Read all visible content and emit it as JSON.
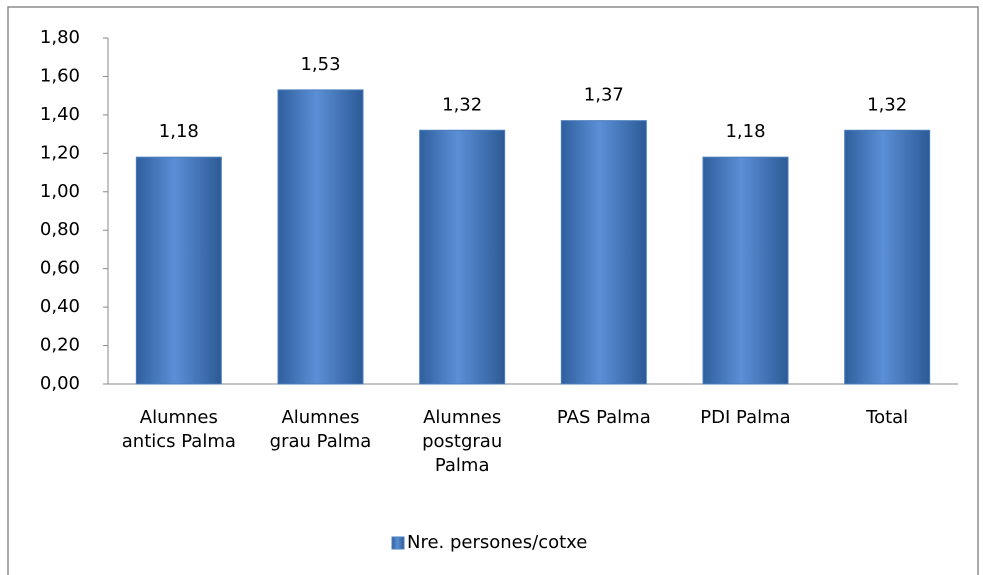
{
  "chart_data": {
    "type": "bar",
    "categories": [
      "Alumnes antics Palma",
      "Alumnes grau Palma",
      "Alumnes postgrau Palma",
      "PAS Palma",
      "PDI Palma",
      "Total"
    ],
    "series": [
      {
        "name": "Nre. persones/cotxe",
        "color": "#4a7ebb",
        "values": [
          1.18,
          1.53,
          1.32,
          1.37,
          1.18,
          1.32
        ],
        "value_labels": [
          "1,18",
          "1,53",
          "1,32",
          "1,37",
          "1,18",
          "1,32"
        ]
      }
    ],
    "ylim": [
      0,
      1.8
    ],
    "yticks": [
      {
        "value": 0,
        "label": "0,00"
      },
      {
        "value": 0.2,
        "label": "0,20"
      },
      {
        "value": 0.4,
        "label": "0,40"
      },
      {
        "value": 0.6,
        "label": "0,60"
      },
      {
        "value": 0.8,
        "label": "0,80"
      },
      {
        "value": 1,
        "label": "1,00"
      },
      {
        "value": 1.2,
        "label": "1,20"
      },
      {
        "value": 1.4,
        "label": "1,40"
      },
      {
        "value": 1.6,
        "label": "1,60"
      },
      {
        "value": 1.8,
        "label": "1,80"
      }
    ],
    "legend": "bottom"
  }
}
